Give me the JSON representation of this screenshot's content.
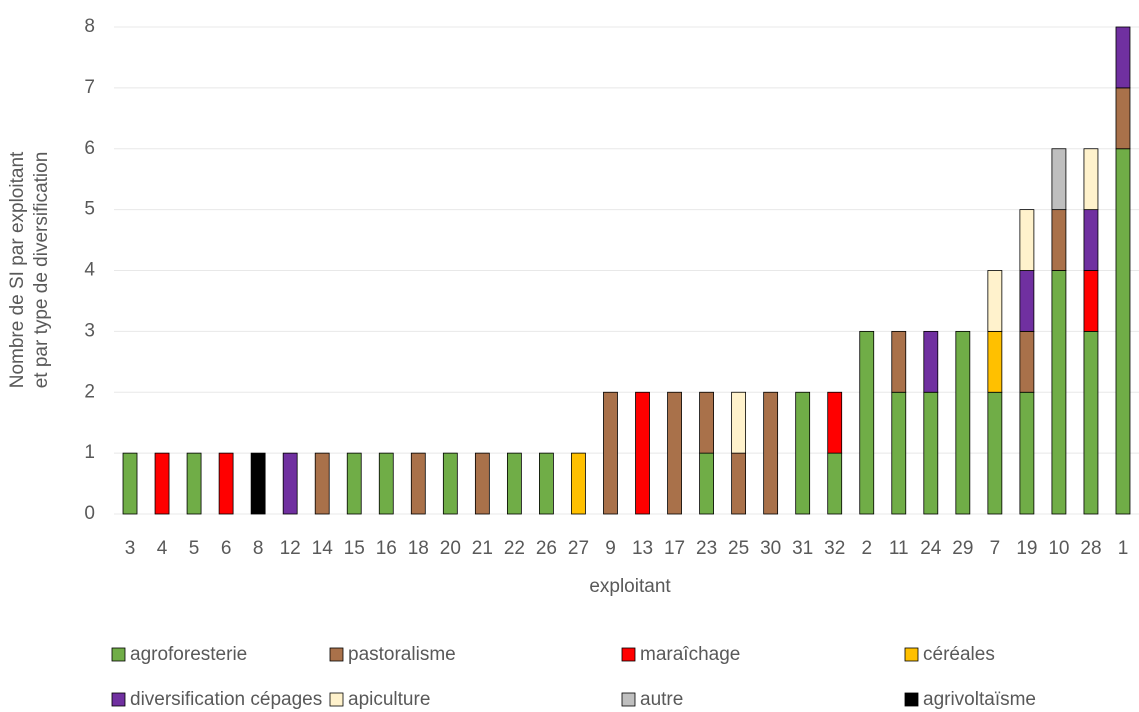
{
  "chart_data": {
    "type": "stacked_bar",
    "y_label": [
      "Nombre de SI par exploitant",
      "et par type de diversification"
    ],
    "x_label": "exploitant",
    "categories": [
      "3",
      "4",
      "5",
      "6",
      "8",
      "12",
      "14",
      "15",
      "16",
      "18",
      "20",
      "21",
      "22",
      "26",
      "27",
      "9",
      "13",
      "17",
      "23",
      "25",
      "30",
      "31",
      "32",
      "2",
      "11",
      "24",
      "29",
      "7",
      "19",
      "10",
      "28",
      "1"
    ],
    "series": [
      {
        "name": "agroforesterie",
        "color": "#70ad47",
        "values": [
          1,
          0,
          1,
          0,
          0,
          0,
          0,
          1,
          1,
          0,
          1,
          0,
          1,
          1,
          0,
          0,
          0,
          0,
          1,
          0,
          0,
          2,
          1,
          3,
          2,
          2,
          3,
          2,
          2,
          4,
          3,
          6
        ]
      },
      {
        "name": "pastoralisme",
        "color": "#a9714a",
        "values": [
          0,
          0,
          0,
          0,
          0,
          0,
          1,
          0,
          0,
          1,
          0,
          1,
          0,
          0,
          0,
          2,
          0,
          2,
          1,
          1,
          2,
          0,
          0,
          0,
          1,
          0,
          0,
          0,
          1,
          1,
          0,
          1
        ]
      },
      {
        "name": "maraîchage",
        "color": "#ff0000",
        "values": [
          0,
          1,
          0,
          1,
          0,
          0,
          0,
          0,
          0,
          0,
          0,
          0,
          0,
          0,
          0,
          0,
          2,
          0,
          0,
          0,
          0,
          0,
          1,
          0,
          0,
          0,
          0,
          0,
          0,
          0,
          1,
          0
        ]
      },
      {
        "name": "céréales",
        "color": "#ffc000",
        "values": [
          0,
          0,
          0,
          0,
          0,
          0,
          0,
          0,
          0,
          0,
          0,
          0,
          0,
          0,
          1,
          0,
          0,
          0,
          0,
          0,
          0,
          0,
          0,
          0,
          0,
          0,
          0,
          1,
          0,
          0,
          0,
          0
        ]
      },
      {
        "name": "diversification cépages",
        "color": "#7030a0",
        "values": [
          0,
          0,
          0,
          0,
          0,
          1,
          0,
          0,
          0,
          0,
          0,
          0,
          0,
          0,
          0,
          0,
          0,
          0,
          0,
          0,
          0,
          0,
          0,
          0,
          0,
          1,
          0,
          0,
          1,
          0,
          1,
          1
        ]
      },
      {
        "name": "apiculture",
        "color": "#fff2cc",
        "values": [
          0,
          0,
          0,
          0,
          0,
          0,
          0,
          0,
          0,
          0,
          0,
          0,
          0,
          0,
          0,
          0,
          0,
          0,
          0,
          1,
          0,
          0,
          0,
          0,
          0,
          0,
          0,
          1,
          1,
          0,
          1,
          0
        ]
      },
      {
        "name": "autre",
        "color": "#bfbfbf",
        "values": [
          0,
          0,
          0,
          0,
          0,
          0,
          0,
          0,
          0,
          0,
          0,
          0,
          0,
          0,
          0,
          0,
          0,
          0,
          0,
          0,
          0,
          0,
          0,
          0,
          0,
          0,
          0,
          0,
          0,
          1,
          0,
          0
        ]
      },
      {
        "name": "agrivoltaïsme",
        "color": "#000000",
        "values": [
          0,
          0,
          0,
          0,
          1,
          0,
          0,
          0,
          0,
          0,
          0,
          0,
          0,
          0,
          0,
          0,
          0,
          0,
          0,
          0,
          0,
          0,
          0,
          0,
          0,
          0,
          0,
          0,
          0,
          0,
          0,
          0
        ]
      }
    ],
    "ylim": [
      0,
      8
    ],
    "yticks": [
      0,
      1,
      2,
      3,
      4,
      5,
      6,
      7,
      8
    ],
    "grid": true
  }
}
